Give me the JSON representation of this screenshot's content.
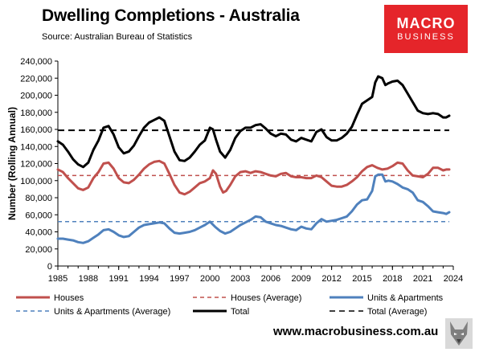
{
  "header": {
    "title": "Dwelling Completions - Australia",
    "subtitle": "Source: Australian Bureau of Statistics",
    "logo_line1": "MACRO",
    "logo_line2": "BUSINESS"
  },
  "footer": {
    "website": "www.macrobusiness.com.au"
  },
  "colors": {
    "houses": "#c0504d",
    "units": "#4f81bd",
    "total": "#000000",
    "logo": "#e5252a"
  },
  "chart_data": {
    "type": "line",
    "ylabel": "Number (Rolling Annual)",
    "ylim": [
      0,
      240000
    ],
    "xlim": [
      1985,
      2024
    ],
    "x_ticks": [
      1985,
      1988,
      1991,
      1994,
      1997,
      2000,
      2003,
      2006,
      2009,
      2012,
      2015,
      2018,
      2021,
      2024
    ],
    "y_ticks": [
      0,
      20000,
      40000,
      60000,
      80000,
      100000,
      120000,
      140000,
      160000,
      180000,
      200000,
      220000,
      240000
    ],
    "legend_position": "bottom",
    "series": [
      {
        "name": "Houses",
        "style": "solid",
        "color": "#c0504d",
        "points": [
          [
            1985,
            113000
          ],
          [
            1985.5,
            110000
          ],
          [
            1986,
            103000
          ],
          [
            1986.5,
            97000
          ],
          [
            1987,
            91000
          ],
          [
            1987.5,
            89000
          ],
          [
            1988,
            92000
          ],
          [
            1988.5,
            103000
          ],
          [
            1989,
            110000
          ],
          [
            1989.5,
            120000
          ],
          [
            1990,
            121000
          ],
          [
            1990.5,
            114000
          ],
          [
            1991,
            103000
          ],
          [
            1991.5,
            98000
          ],
          [
            1992,
            97000
          ],
          [
            1992.5,
            101000
          ],
          [
            1993,
            107000
          ],
          [
            1993.5,
            114000
          ],
          [
            1994,
            119000
          ],
          [
            1994.5,
            122000
          ],
          [
            1995,
            123000
          ],
          [
            1995.5,
            120000
          ],
          [
            1996,
            108000
          ],
          [
            1996.5,
            95000
          ],
          [
            1997,
            86000
          ],
          [
            1997.5,
            84000
          ],
          [
            1998,
            87000
          ],
          [
            1998.5,
            92000
          ],
          [
            1999,
            97000
          ],
          [
            1999.5,
            99000
          ],
          [
            2000,
            103000
          ],
          [
            2000.3,
            112000
          ],
          [
            2000.6,
            108000
          ],
          [
            2001,
            93000
          ],
          [
            2001.3,
            86000
          ],
          [
            2001.6,
            88000
          ],
          [
            2002,
            95000
          ],
          [
            2002.5,
            105000
          ],
          [
            2003,
            110000
          ],
          [
            2003.5,
            111000
          ],
          [
            2004,
            109000
          ],
          [
            2004.5,
            111000
          ],
          [
            2005,
            110000
          ],
          [
            2005.5,
            108000
          ],
          [
            2006,
            106000
          ],
          [
            2006.5,
            105000
          ],
          [
            2007,
            108000
          ],
          [
            2007.5,
            109000
          ],
          [
            2008,
            105000
          ],
          [
            2008.5,
            104000
          ],
          [
            2009,
            104000
          ],
          [
            2009.5,
            103000
          ],
          [
            2010,
            103000
          ],
          [
            2010.5,
            106000
          ],
          [
            2011,
            104000
          ],
          [
            2011.5,
            99000
          ],
          [
            2012,
            94000
          ],
          [
            2012.5,
            93000
          ],
          [
            2013,
            93000
          ],
          [
            2013.5,
            95000
          ],
          [
            2014,
            99000
          ],
          [
            2014.5,
            104000
          ],
          [
            2015,
            111000
          ],
          [
            2015.5,
            116000
          ],
          [
            2016,
            118000
          ],
          [
            2016.5,
            115000
          ],
          [
            2017,
            113000
          ],
          [
            2017.5,
            114000
          ],
          [
            2018,
            117000
          ],
          [
            2018.5,
            121000
          ],
          [
            2019,
            120000
          ],
          [
            2019.5,
            112000
          ],
          [
            2020,
            106000
          ],
          [
            2020.5,
            105000
          ],
          [
            2021,
            104000
          ],
          [
            2021.5,
            108000
          ],
          [
            2022,
            115000
          ],
          [
            2022.5,
            115000
          ],
          [
            2023,
            112000
          ],
          [
            2023.3,
            113000
          ],
          [
            2023.6,
            113000
          ]
        ]
      },
      {
        "name": "Houses (Average)",
        "style": "dashed",
        "color": "#c0504d",
        "points": [
          [
            1985,
            106000
          ],
          [
            2023.6,
            106000
          ]
        ]
      },
      {
        "name": "Units & Apartments",
        "style": "solid",
        "color": "#4f81bd",
        "points": [
          [
            1985,
            32000
          ],
          [
            1985.5,
            32000
          ],
          [
            1986,
            31000
          ],
          [
            1986.5,
            30000
          ],
          [
            1987,
            28000
          ],
          [
            1987.5,
            27000
          ],
          [
            1988,
            29000
          ],
          [
            1988.5,
            33000
          ],
          [
            1989,
            37000
          ],
          [
            1989.5,
            42000
          ],
          [
            1990,
            43000
          ],
          [
            1990.5,
            40000
          ],
          [
            1991,
            36000
          ],
          [
            1991.5,
            34000
          ],
          [
            1992,
            35000
          ],
          [
            1992.5,
            40000
          ],
          [
            1993,
            45000
          ],
          [
            1993.5,
            48000
          ],
          [
            1994,
            49000
          ],
          [
            1994.5,
            50000
          ],
          [
            1995,
            51000
          ],
          [
            1995.5,
            50000
          ],
          [
            1996,
            44000
          ],
          [
            1996.5,
            39000
          ],
          [
            1997,
            38000
          ],
          [
            1997.5,
            39000
          ],
          [
            1998,
            40000
          ],
          [
            1998.5,
            42000
          ],
          [
            1999,
            45000
          ],
          [
            1999.5,
            48000
          ],
          [
            2000,
            52000
          ],
          [
            2000.5,
            46000
          ],
          [
            2001,
            41000
          ],
          [
            2001.5,
            38000
          ],
          [
            2002,
            40000
          ],
          [
            2002.5,
            44000
          ],
          [
            2003,
            48000
          ],
          [
            2003.5,
            51000
          ],
          [
            2004,
            54000
          ],
          [
            2004.5,
            58000
          ],
          [
            2005,
            57000
          ],
          [
            2005.5,
            52000
          ],
          [
            2006,
            50000
          ],
          [
            2006.5,
            48000
          ],
          [
            2007,
            47000
          ],
          [
            2007.5,
            45000
          ],
          [
            2008,
            43000
          ],
          [
            2008.5,
            42000
          ],
          [
            2009,
            46000
          ],
          [
            2009.5,
            44000
          ],
          [
            2010,
            43000
          ],
          [
            2010.5,
            50000
          ],
          [
            2011,
            55000
          ],
          [
            2011.5,
            52000
          ],
          [
            2012,
            53000
          ],
          [
            2012.5,
            54000
          ],
          [
            2013,
            56000
          ],
          [
            2013.5,
            58000
          ],
          [
            2014,
            64000
          ],
          [
            2014.5,
            72000
          ],
          [
            2015,
            77000
          ],
          [
            2015.5,
            78000
          ],
          [
            2016,
            88000
          ],
          [
            2016.3,
            105000
          ],
          [
            2016.6,
            107000
          ],
          [
            2017,
            107000
          ],
          [
            2017.3,
            99000
          ],
          [
            2017.6,
            100000
          ],
          [
            2018,
            99000
          ],
          [
            2018.5,
            96000
          ],
          [
            2019,
            92000
          ],
          [
            2019.5,
            90000
          ],
          [
            2020,
            86000
          ],
          [
            2020.5,
            77000
          ],
          [
            2021,
            75000
          ],
          [
            2021.5,
            70000
          ],
          [
            2022,
            64000
          ],
          [
            2022.5,
            63000
          ],
          [
            2023,
            62000
          ],
          [
            2023.3,
            61000
          ],
          [
            2023.6,
            63000
          ]
        ]
      },
      {
        "name": "Units & Apartments (Average)",
        "style": "dashed",
        "color": "#4f81bd",
        "points": [
          [
            1985,
            52000
          ],
          [
            2023.6,
            52000
          ]
        ]
      },
      {
        "name": "Total",
        "style": "solid",
        "color": "#000000",
        "points": [
          [
            1985,
            146000
          ],
          [
            1985.5,
            142000
          ],
          [
            1986,
            134000
          ],
          [
            1986.5,
            125000
          ],
          [
            1987,
            119000
          ],
          [
            1987.5,
            116000
          ],
          [
            1988,
            121000
          ],
          [
            1988.5,
            136000
          ],
          [
            1989,
            147000
          ],
          [
            1989.5,
            162000
          ],
          [
            1990,
            164000
          ],
          [
            1990.5,
            154000
          ],
          [
            1991,
            139000
          ],
          [
            1991.5,
            132000
          ],
          [
            1992,
            134000
          ],
          [
            1992.5,
            141000
          ],
          [
            1993,
            152000
          ],
          [
            1993.5,
            162000
          ],
          [
            1994,
            168000
          ],
          [
            1994.5,
            171000
          ],
          [
            1995,
            174000
          ],
          [
            1995.5,
            170000
          ],
          [
            1996,
            152000
          ],
          [
            1996.5,
            134000
          ],
          [
            1997,
            124000
          ],
          [
            1997.5,
            123000
          ],
          [
            1998,
            127000
          ],
          [
            1998.5,
            134000
          ],
          [
            1999,
            142000
          ],
          [
            1999.5,
            147000
          ],
          [
            2000,
            162000
          ],
          [
            2000.3,
            160000
          ],
          [
            2000.6,
            148000
          ],
          [
            2001,
            134000
          ],
          [
            2001.5,
            127000
          ],
          [
            2002,
            136000
          ],
          [
            2002.5,
            150000
          ],
          [
            2003,
            158000
          ],
          [
            2003.5,
            162000
          ],
          [
            2004,
            162000
          ],
          [
            2004.5,
            165000
          ],
          [
            2005,
            166000
          ],
          [
            2005.5,
            161000
          ],
          [
            2006,
            155000
          ],
          [
            2006.5,
            152000
          ],
          [
            2007,
            155000
          ],
          [
            2007.5,
            154000
          ],
          [
            2008,
            148000
          ],
          [
            2008.5,
            146000
          ],
          [
            2009,
            150000
          ],
          [
            2009.5,
            148000
          ],
          [
            2010,
            146000
          ],
          [
            2010.5,
            157000
          ],
          [
            2011,
            160000
          ],
          [
            2011.5,
            151000
          ],
          [
            2012,
            147000
          ],
          [
            2012.5,
            147000
          ],
          [
            2013,
            150000
          ],
          [
            2013.5,
            155000
          ],
          [
            2014,
            163000
          ],
          [
            2014.5,
            177000
          ],
          [
            2015,
            190000
          ],
          [
            2015.5,
            194000
          ],
          [
            2016,
            198000
          ],
          [
            2016.3,
            215000
          ],
          [
            2016.6,
            222000
          ],
          [
            2017,
            220000
          ],
          [
            2017.3,
            212000
          ],
          [
            2017.6,
            214000
          ],
          [
            2018,
            216000
          ],
          [
            2018.5,
            217000
          ],
          [
            2019,
            212000
          ],
          [
            2019.5,
            202000
          ],
          [
            2020,
            192000
          ],
          [
            2020.5,
            182000
          ],
          [
            2021,
            179000
          ],
          [
            2021.5,
            178000
          ],
          [
            2022,
            179000
          ],
          [
            2022.5,
            178000
          ],
          [
            2023,
            174000
          ],
          [
            2023.3,
            174000
          ],
          [
            2023.6,
            176000
          ]
        ]
      },
      {
        "name": "Total (Average)",
        "style": "dashed",
        "color": "#000000",
        "points": [
          [
            1985,
            159000
          ],
          [
            2023.6,
            159000
          ]
        ]
      }
    ]
  }
}
